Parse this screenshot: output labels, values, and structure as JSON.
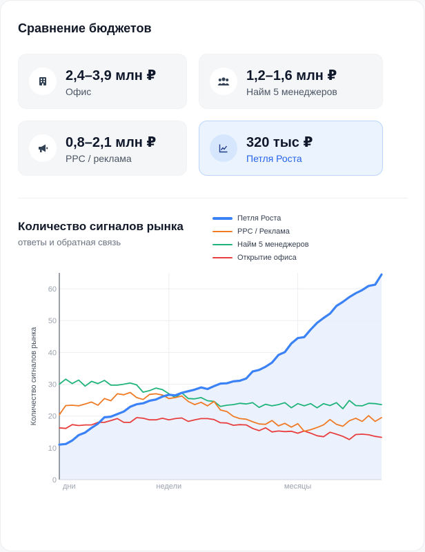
{
  "header": {
    "title": "Сравнение бюджетов"
  },
  "tiles": [
    {
      "value": "2,4–3,9 млн ₽",
      "label": "Офис",
      "icon": "building-icon"
    },
    {
      "value": "1,2–1,6 млн ₽",
      "label": "Найм 5 менеджеров",
      "icon": "users-icon"
    },
    {
      "value": "0,8–2,1 млн ₽",
      "label": "PPC / реклама",
      "icon": "megaphone-icon"
    },
    {
      "value": "320 тыс ₽",
      "label": "Петля Роста",
      "icon": "trend-chart-icon",
      "selected": true
    }
  ],
  "chart_section": {
    "title": "Количество сигналов рынка",
    "subtitle": "ответы и обратная связь"
  },
  "chart_data": {
    "type": "line",
    "title": "Количество сигналов рынка",
    "ylabel": "Количество сигналов рынка",
    "xlabel": "",
    "ylim": [
      0,
      65
    ],
    "yticks": [
      0,
      10,
      20,
      30,
      40,
      50,
      60
    ],
    "xticks": [
      {
        "label": "дни",
        "index": 0
      },
      {
        "label": "недели",
        "index": 17
      },
      {
        "label": "месяцы",
        "index": 37
      }
    ],
    "grid": true,
    "legend": "top-right",
    "series": [
      {
        "name": "Петля Роста",
        "color": "#3b82f6",
        "fill": true,
        "values": [
          11.0,
          11.2,
          12.3,
          14.0,
          14.8,
          16.3,
          17.6,
          19.6,
          19.8,
          20.6,
          21.4,
          22.9,
          23.7,
          24.0,
          24.8,
          25.2,
          26.1,
          26.7,
          26.5,
          27.3,
          27.8,
          28.3,
          29.0,
          28.5,
          29.4,
          30.2,
          30.3,
          30.9,
          31.1,
          31.8,
          34.0,
          34.5,
          35.5,
          36.8,
          39.2,
          40.1,
          42.8,
          44.5,
          44.8,
          47.2,
          49.3,
          50.8,
          52.2,
          54.6,
          55.9,
          57.4,
          58.6,
          59.6,
          60.9,
          61.3,
          64.5
        ]
      },
      {
        "name": "PPC / Реклама",
        "color": "#f07a24",
        "values": [
          20.4,
          23.3,
          23.4,
          23.2,
          23.8,
          24.4,
          23.4,
          25.5,
          24.8,
          27.0,
          26.7,
          27.4,
          25.8,
          25.2,
          26.8,
          27.0,
          26.6,
          25.5,
          25.8,
          26.3,
          24.6,
          23.6,
          24.3,
          23.2,
          24.6,
          21.9,
          21.4,
          19.9,
          19.2,
          19.0,
          18.2,
          17.5,
          17.4,
          18.6,
          16.9,
          17.7,
          16.5,
          17.6,
          15.2,
          15.7,
          16.4,
          17.2,
          18.9,
          17.4,
          16.8,
          18.5,
          19.3,
          18.3,
          20.1,
          18.3,
          19.5
        ]
      },
      {
        "name": "Найм 5 менеджеров",
        "color": "#20b47a",
        "values": [
          30.0,
          31.6,
          30.2,
          31.3,
          29.4,
          30.9,
          30.2,
          31.2,
          29.7,
          29.7,
          30.0,
          30.4,
          29.8,
          27.5,
          28.0,
          28.8,
          28.3,
          27.0,
          25.8,
          27.3,
          25.5,
          25.4,
          25.8,
          24.8,
          24.6,
          23.0,
          23.4,
          23.6,
          24.0,
          23.8,
          24.2,
          22.7,
          23.7,
          23.2,
          23.6,
          24.2,
          22.6,
          23.9,
          23.2,
          23.9,
          22.6,
          23.9,
          23.3,
          24.2,
          22.3,
          24.9,
          23.3,
          23.2,
          24.0,
          23.9,
          23.6
        ]
      },
      {
        "name": "Открытие офиса",
        "color": "#e83e3e",
        "values": [
          16.3,
          16.1,
          17.3,
          17.0,
          17.2,
          17.2,
          18.0,
          18.0,
          18.6,
          19.2,
          18.0,
          18.0,
          19.5,
          19.3,
          18.8,
          18.8,
          19.3,
          18.8,
          19.2,
          19.4,
          18.3,
          18.8,
          19.2,
          19.2,
          18.9,
          17.9,
          17.8,
          17.1,
          17.3,
          17.2,
          16.1,
          15.4,
          16.3,
          15.0,
          15.3,
          15.1,
          15.2,
          14.6,
          15.3,
          14.6,
          13.8,
          13.5,
          14.9,
          14.3,
          13.6,
          12.6,
          14.2,
          14.3,
          14.1,
          13.6,
          13.3
        ]
      }
    ]
  }
}
